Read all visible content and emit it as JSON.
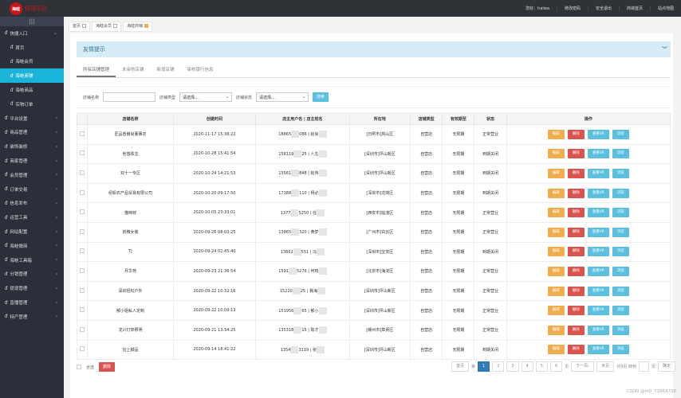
{
  "header": {
    "logo_badge": "海蛙",
    "logo_text": "管理平台",
    "greeting": "您好：haiwa",
    "links": [
      "修改密码",
      "安全退出",
      "商城首页",
      "站点地图"
    ]
  },
  "sidebar": {
    "toggle": "|||",
    "items": [
      {
        "label": "快捷入口",
        "arrow": "⌄",
        "sub": false
      },
      {
        "label": "首页",
        "sub": true
      },
      {
        "label": "海蛙会员",
        "sub": true
      },
      {
        "label": "海蛙商铺",
        "sub": true,
        "active": true
      },
      {
        "label": "海蛙商品",
        "sub": true
      },
      {
        "label": "实物订单",
        "sub": true
      },
      {
        "label": "平台设置",
        "arrow": "‹"
      },
      {
        "label": "商品管理",
        "arrow": "‹"
      },
      {
        "label": "装饰装修",
        "arrow": "‹"
      },
      {
        "label": "商家管理",
        "arrow": "‹"
      },
      {
        "label": "会员管理",
        "arrow": "‹"
      },
      {
        "label": "订单交易",
        "arrow": "‹"
      },
      {
        "label": "信息发布",
        "arrow": "‹"
      },
      {
        "label": "运营工具",
        "arrow": "‹"
      },
      {
        "label": "网站配置",
        "arrow": "‹"
      },
      {
        "label": "海蛙微商",
        "arrow": "‹"
      },
      {
        "label": "海蛙工具箱",
        "arrow": "‹"
      },
      {
        "label": "分销管理",
        "arrow": "‹"
      },
      {
        "label": "提现管理",
        "arrow": "‹"
      },
      {
        "label": "直播管理",
        "arrow": "‹"
      },
      {
        "label": "特产管理",
        "arrow": "‹"
      }
    ]
  },
  "tabbar": [
    "首页",
    "海蛙会员",
    "海蛙商铺"
  ],
  "alert": {
    "title": "友情提示"
  },
  "tabs": [
    "所有店铺管理",
    "未审核店铺",
    "新增店铺",
    "审核银行信息"
  ],
  "filter": {
    "name_label": "店铺名称",
    "name_value": "",
    "type_label": "店铺类型",
    "type_value": "请选择...",
    "status_label": "店铺状态",
    "status_value": "请选择...",
    "search": "搜索"
  },
  "table": {
    "headers": [
      "",
      "店铺名称",
      "创建时间",
      "店主用户名 | 店主姓名",
      "所在地",
      "店铺类型",
      "有效期至",
      "状态",
      "操作"
    ],
    "actions": {
      "edit": "编辑",
      "delete": "删除",
      "vr": "查看VR",
      "browse": "浏览"
    },
    "rows": [
      {
        "name": "匠品悉傲尚董蕈农",
        "time": "2020-11-17 15:38:22",
        "owner": "18865",
        "owner2": "086 | 赵尚",
        "loc": "[日照市]岚山区",
        "type": "自营店",
        "expire": "无限期",
        "status": "正常营业"
      },
      {
        "name": "他悠珠宝",
        "time": "2020-10-28 15:41:54",
        "owner": "158119",
        "owner2": "25 | 人生",
        "loc": "[深圳市]坪山新区",
        "type": "自营店",
        "expire": "无限期",
        "status": "到期关闭"
      },
      {
        "name": "双十一专区",
        "time": "2020-10-24 14:21:53",
        "owner": "13561",
        "owner2": "848 | 赵伟",
        "loc": "[深圳市]坪山新区",
        "type": "自营店",
        "expire": "无限期",
        "status": "到期关闭"
      },
      {
        "name": "绍钒农产品贸易有限公司",
        "time": "2020-10-20 09:17:50",
        "owner": "17388",
        "owner2": "110 | 杨必",
        "loc": "[深圳市]龙岗区",
        "type": "自营店",
        "expire": "无限期",
        "status": "到期关闭"
      },
      {
        "name": "猫咪鲜",
        "time": "2020-10-05 23:33:01",
        "owner": "1377",
        "owner2": "5250 | 任",
        "loc": "[西安市]临潼区",
        "type": "自营店",
        "expire": "无限期",
        "status": "正常营业"
      },
      {
        "name": "妖精女装",
        "time": "2020-09-26 08:03:25",
        "owner": "13865",
        "owner2": "320 | 黄梦",
        "loc": "[广州市]白云区",
        "type": "自营店",
        "expire": "无限期",
        "status": "正常营业"
      },
      {
        "name": "TJ",
        "time": "2020-09-24 02:45:40",
        "owner": "13662",
        "owner2": "551 | 冯",
        "loc": "[深圳市]宝安区",
        "type": "自营店",
        "expire": "无限期",
        "status": "到期关闭"
      },
      {
        "name": "月华苑",
        "time": "2020-09-23 21:36:54",
        "owner": "1591",
        "owner2": "5276 | 何晓",
        "loc": "[北京市]海淀区",
        "type": "自营店",
        "expire": "无限期",
        "status": "正常营业"
      },
      {
        "name": "深圳轻松户外",
        "time": "2020-09-22 10:32:16",
        "owner": "15220",
        "owner2": "25 | 冀海",
        "loc": "[深圳市]坪山新区",
        "type": "自营店",
        "expire": "无限期",
        "status": "正常营业"
      },
      {
        "name": "郁小姐私人定制",
        "time": "2020-09-22 10:09:13",
        "owner": "151956",
        "owner2": "65 | 郁小",
        "loc": "[深圳市]坪山新区",
        "type": "自营店",
        "expire": "无限期",
        "status": "正常营业"
      },
      {
        "name": "龙兴灯饰照明",
        "time": "2020-09-21 13:34:25",
        "owner": "135318",
        "owner2": "15 | 陈才",
        "loc": "[赣州市]章贡区",
        "type": "自营店",
        "expire": "无限期",
        "status": "正常营业"
      },
      {
        "name": "钰上脚品",
        "time": "2020-09-14 18:41:22",
        "owner": "1354",
        "owner2": "3119 | 张",
        "loc": "[深圳市]坪山新区",
        "type": "自营店",
        "expire": "无限期",
        "status": "到期关闭"
      }
    ]
  },
  "footer": {
    "select_all": "全选",
    "delete": "删除"
  },
  "pager": {
    "first": "首页",
    "di": "第",
    "pages": [
      "1",
      "2",
      "3",
      "4",
      "5",
      "6"
    ],
    "current": "1",
    "ye": "页",
    "next": "下一页›",
    "last": "末页",
    "total": "共9页 转到",
    "ye2": "页",
    "go": "确定"
  },
  "watermark": "CSDN @m0_72864708"
}
